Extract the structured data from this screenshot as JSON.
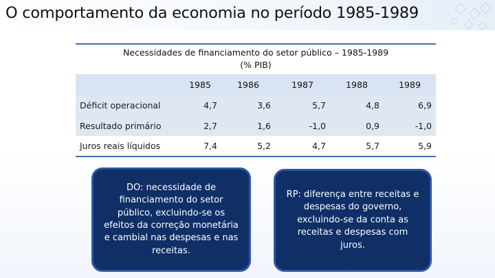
{
  "title": "O comportamento da economia no período 1985-1989",
  "table": {
    "caption_line1": "Necessidades de financiamento do setor público – 1985-1989",
    "caption_line2": "(% PIB)",
    "years": [
      "1985",
      "1986",
      "1987",
      "1988",
      "1989"
    ],
    "rows": [
      {
        "label": "Déficit operacional",
        "values": [
          "4,7",
          "3,6",
          "5,7",
          "4,8",
          "6,9"
        ]
      },
      {
        "label": "Resultado primário",
        "values": [
          "2,7",
          "1,6",
          "-1,0",
          "0,9",
          "-1,0"
        ]
      },
      {
        "label": "Juros reais líquidos",
        "values": [
          "7,4",
          "5,2",
          "4,7",
          "5,7",
          "5,9"
        ]
      }
    ]
  },
  "callouts": {
    "do": "DO: necessidade de financiamento do setor público, excluindo-se os efeitos da correção monetária e cambial nas despesas e nas receitas.",
    "rp": "RP: diferença entre receitas e despesas do governo, excluindo-se da conta as receitas e despesas com juros."
  },
  "colors": {
    "accent": "#3d6fb6",
    "header_fill": "#d9e3f1",
    "callout_fill": "#0f2f66",
    "callout_border": "#2d56a4"
  }
}
